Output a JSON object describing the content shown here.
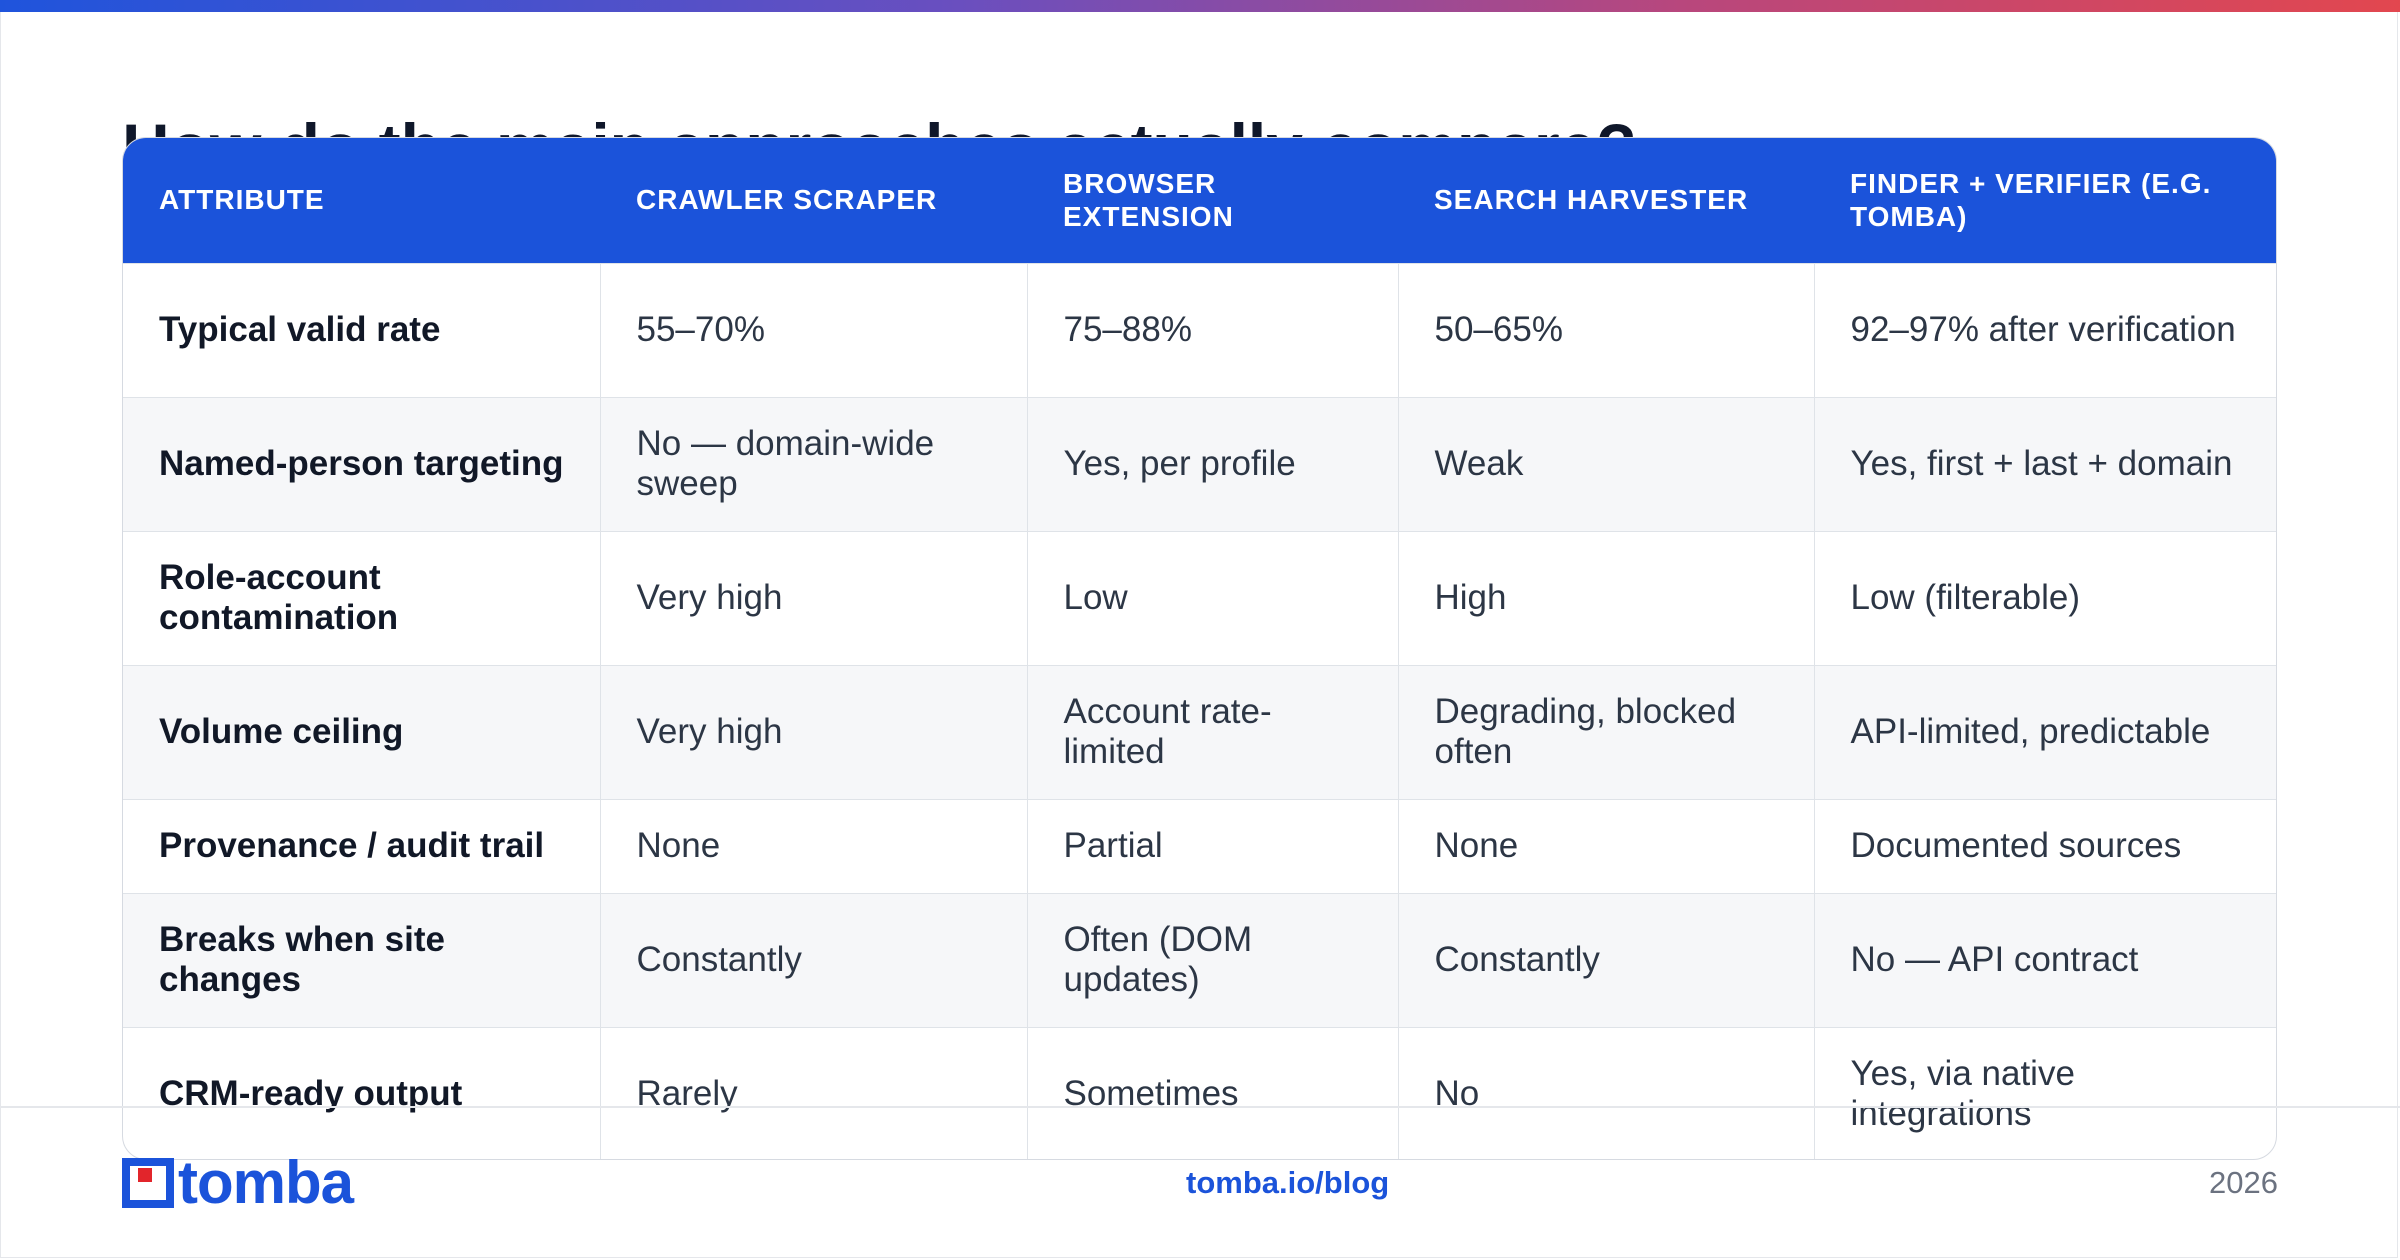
{
  "heading": "How do the main approaches actually compare?",
  "table": {
    "headers": [
      "Attribute",
      "Crawler scraper",
      "Browser extension",
      "Search harvester",
      "Finder + verifier (e.g. Tomba)"
    ],
    "rows": [
      [
        "Typical valid rate",
        "55–70%",
        "75–88%",
        "50–65%",
        "92–97% after verification"
      ],
      [
        "Named-person targeting",
        "No — domain-wide sweep",
        "Yes, per profile",
        "Weak",
        "Yes, first + last + domain"
      ],
      [
        "Role-account contamination",
        "Very high",
        "Low",
        "High",
        "Low (filterable)"
      ],
      [
        "Volume ceiling",
        "Very high",
        "Account rate-limited",
        "Degrading, blocked often",
        "API-limited, predictable"
      ],
      [
        "Provenance / audit trail",
        "None",
        "Partial",
        "None",
        "Documented sources"
      ],
      [
        "Breaks when site changes",
        "Constantly",
        "Often (DOM updates)",
        "Constantly",
        "No — API contract"
      ],
      [
        "CRM-ready output",
        "Rarely",
        "Sometimes",
        "No",
        "Yes, via native integrations"
      ]
    ]
  },
  "footer": {
    "logo_text": "tomba",
    "link": "tomba.io/blog",
    "year": "2026",
    "logo_icon": "tomba-logo-icon"
  },
  "colors": {
    "accent": "#1b53da",
    "logo_red": "#e2252b"
  }
}
